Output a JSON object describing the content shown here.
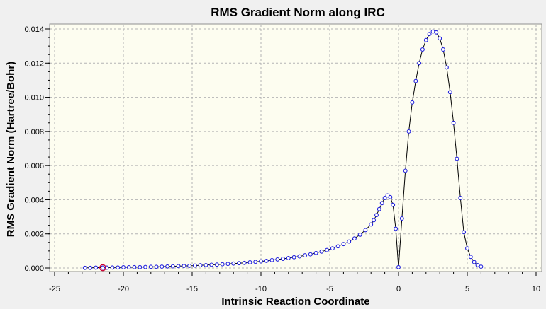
{
  "chart_data": {
    "type": "line",
    "title": "RMS Gradient Norm along IRC",
    "xlabel": "Intrinsic Reaction Coordinate",
    "ylabel": "RMS Gradient Norm (Hartree/Bohr)",
    "xlim": [
      -25,
      10
    ],
    "ylim": [
      0,
      0.014
    ],
    "x_ticks": [
      -25,
      -20,
      -15,
      -10,
      -5,
      0,
      5,
      10
    ],
    "x_tick_labels": [
      "-25",
      "-20",
      "-15",
      "-10",
      "-5",
      "0",
      "5",
      "10"
    ],
    "y_ticks": [
      0,
      0.002,
      0.004,
      0.006,
      0.008,
      0.01,
      0.012,
      0.014
    ],
    "y_tick_labels": [
      "0.000",
      "0.002",
      "0.004",
      "0.006",
      "0.008",
      "0.010",
      "0.012",
      "0.014"
    ],
    "grid": true,
    "legend": "none",
    "colors": {
      "plot_background": "#fdfdf0",
      "line": "#000000",
      "marker": "#2222dd",
      "highlight": "#cc0033",
      "grid": "#b4b4b4"
    },
    "highlight_point": {
      "x": -21.5,
      "y": 2e-05
    },
    "series": [
      {
        "points": [
          [
            -22.8,
            1e-05
          ],
          [
            -22.4,
            1e-05
          ],
          [
            -22.0,
            2e-05
          ],
          [
            -21.5,
            2e-05
          ],
          [
            -21.2,
            2e-05
          ],
          [
            -20.8,
            3e-05
          ],
          [
            -20.4,
            3e-05
          ],
          [
            -20.0,
            4e-05
          ],
          [
            -19.6,
            4e-05
          ],
          [
            -19.2,
            5e-05
          ],
          [
            -18.8,
            5e-05
          ],
          [
            -18.4,
            6e-05
          ],
          [
            -18.0,
            7e-05
          ],
          [
            -17.6,
            7e-05
          ],
          [
            -17.2,
            8e-05
          ],
          [
            -16.8,
            9e-05
          ],
          [
            -16.4,
            0.0001
          ],
          [
            -16.0,
            0.00011
          ],
          [
            -15.6,
            0.00012
          ],
          [
            -15.2,
            0.00013
          ],
          [
            -14.8,
            0.00014
          ],
          [
            -14.4,
            0.00016
          ],
          [
            -14.0,
            0.00017
          ],
          [
            -13.6,
            0.00019
          ],
          [
            -13.2,
            0.0002
          ],
          [
            -12.8,
            0.00022
          ],
          [
            -12.4,
            0.00024
          ],
          [
            -12.0,
            0.00026
          ],
          [
            -11.6,
            0.00028
          ],
          [
            -11.2,
            0.0003
          ],
          [
            -10.8,
            0.00033
          ],
          [
            -10.4,
            0.00036
          ],
          [
            -10.0,
            0.00039
          ],
          [
            -9.6,
            0.00042
          ],
          [
            -9.2,
            0.00046
          ],
          [
            -8.8,
            0.0005
          ],
          [
            -8.4,
            0.00054
          ],
          [
            -8.0,
            0.00058
          ],
          [
            -7.6,
            0.00063
          ],
          [
            -7.2,
            0.00068
          ],
          [
            -6.8,
            0.00074
          ],
          [
            -6.4,
            0.0008
          ],
          [
            -6.0,
            0.00088
          ],
          [
            -5.6,
            0.00096
          ],
          [
            -5.2,
            0.00105
          ],
          [
            -4.8,
            0.00115
          ],
          [
            -4.4,
            0.00127
          ],
          [
            -4.0,
            0.0014
          ],
          [
            -3.6,
            0.00155
          ],
          [
            -3.2,
            0.00173
          ],
          [
            -2.8,
            0.00195
          ],
          [
            -2.4,
            0.00222
          ],
          [
            -2.0,
            0.00255
          ],
          [
            -1.8,
            0.0028
          ],
          [
            -1.6,
            0.0031
          ],
          [
            -1.4,
            0.00345
          ],
          [
            -1.2,
            0.0038
          ],
          [
            -1.0,
            0.0041
          ],
          [
            -0.8,
            0.00425
          ],
          [
            -0.6,
            0.00415
          ],
          [
            -0.4,
            0.0037
          ],
          [
            -0.2,
            0.0023
          ],
          [
            0.0,
            5e-05
          ],
          [
            0.25,
            0.0029
          ],
          [
            0.5,
            0.0057
          ],
          [
            0.75,
            0.008
          ],
          [
            1.0,
            0.0097
          ],
          [
            1.25,
            0.01095
          ],
          [
            1.5,
            0.012
          ],
          [
            1.75,
            0.0128
          ],
          [
            2.0,
            0.01335
          ],
          [
            2.25,
            0.0137
          ],
          [
            2.5,
            0.01385
          ],
          [
            2.75,
            0.0138
          ],
          [
            3.0,
            0.01345
          ],
          [
            3.25,
            0.0128
          ],
          [
            3.5,
            0.01175
          ],
          [
            3.75,
            0.0103
          ],
          [
            4.0,
            0.0085
          ],
          [
            4.25,
            0.0064
          ],
          [
            4.5,
            0.0041
          ],
          [
            4.75,
            0.0021
          ],
          [
            5.0,
            0.00115
          ],
          [
            5.25,
            0.00065
          ],
          [
            5.5,
            0.00035
          ],
          [
            5.75,
            0.00017
          ],
          [
            6.0,
            8e-05
          ]
        ]
      }
    ]
  }
}
